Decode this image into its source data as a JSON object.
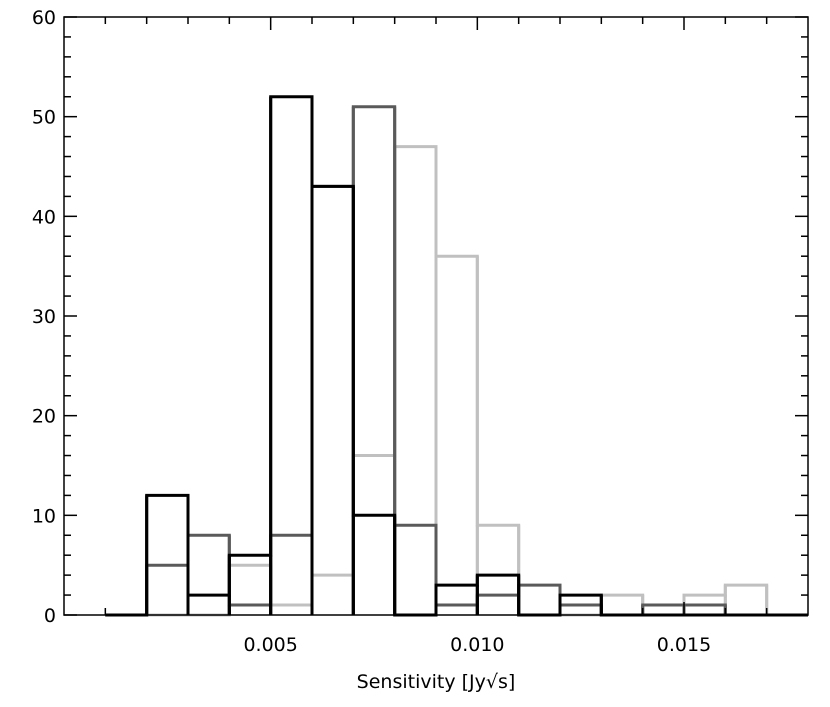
{
  "chart_data": {
    "type": "histogram",
    "title": "",
    "xlabel": "Sensitivity [Jy√s]",
    "ylabel": "",
    "xlim": [
      0.0,
      0.018
    ],
    "ylim": [
      0,
      60
    ],
    "x_ticks": [
      {
        "value": 0.005,
        "label": "0.005"
      },
      {
        "value": 0.01,
        "label": "0.010"
      },
      {
        "value": 0.015,
        "label": "0.015"
      }
    ],
    "y_ticks": [
      {
        "value": 0,
        "label": "0"
      },
      {
        "value": 10,
        "label": "10"
      },
      {
        "value": 20,
        "label": "20"
      },
      {
        "value": 30,
        "label": "30"
      },
      {
        "value": 40,
        "label": "40"
      },
      {
        "value": 50,
        "label": "50"
      },
      {
        "value": 60,
        "label": "60"
      }
    ],
    "bin_edges": [
      0.001,
      0.002,
      0.003,
      0.004,
      0.005,
      0.006,
      0.007,
      0.008,
      0.009,
      0.01,
      0.011,
      0.012,
      0.013,
      0.014,
      0.015,
      0.016,
      0.017,
      0.018
    ],
    "series": [
      {
        "color": "#c0c0c0",
        "values": [
          0,
          0,
          0,
          5,
          1,
          4,
          16,
          47,
          36,
          9,
          0,
          0,
          2,
          1,
          2,
          3,
          0
        ]
      },
      {
        "color": "#5a5a5a",
        "values": [
          0,
          5,
          8,
          1,
          8,
          43,
          51,
          9,
          1,
          2,
          3,
          1,
          0,
          1,
          1,
          0,
          0
        ]
      },
      {
        "color": "#000000",
        "values": [
          0,
          12,
          2,
          6,
          52,
          43,
          10,
          0,
          3,
          4,
          0,
          2,
          0,
          0,
          0,
          0,
          0
        ]
      }
    ],
    "grid": false,
    "legend": "none"
  }
}
